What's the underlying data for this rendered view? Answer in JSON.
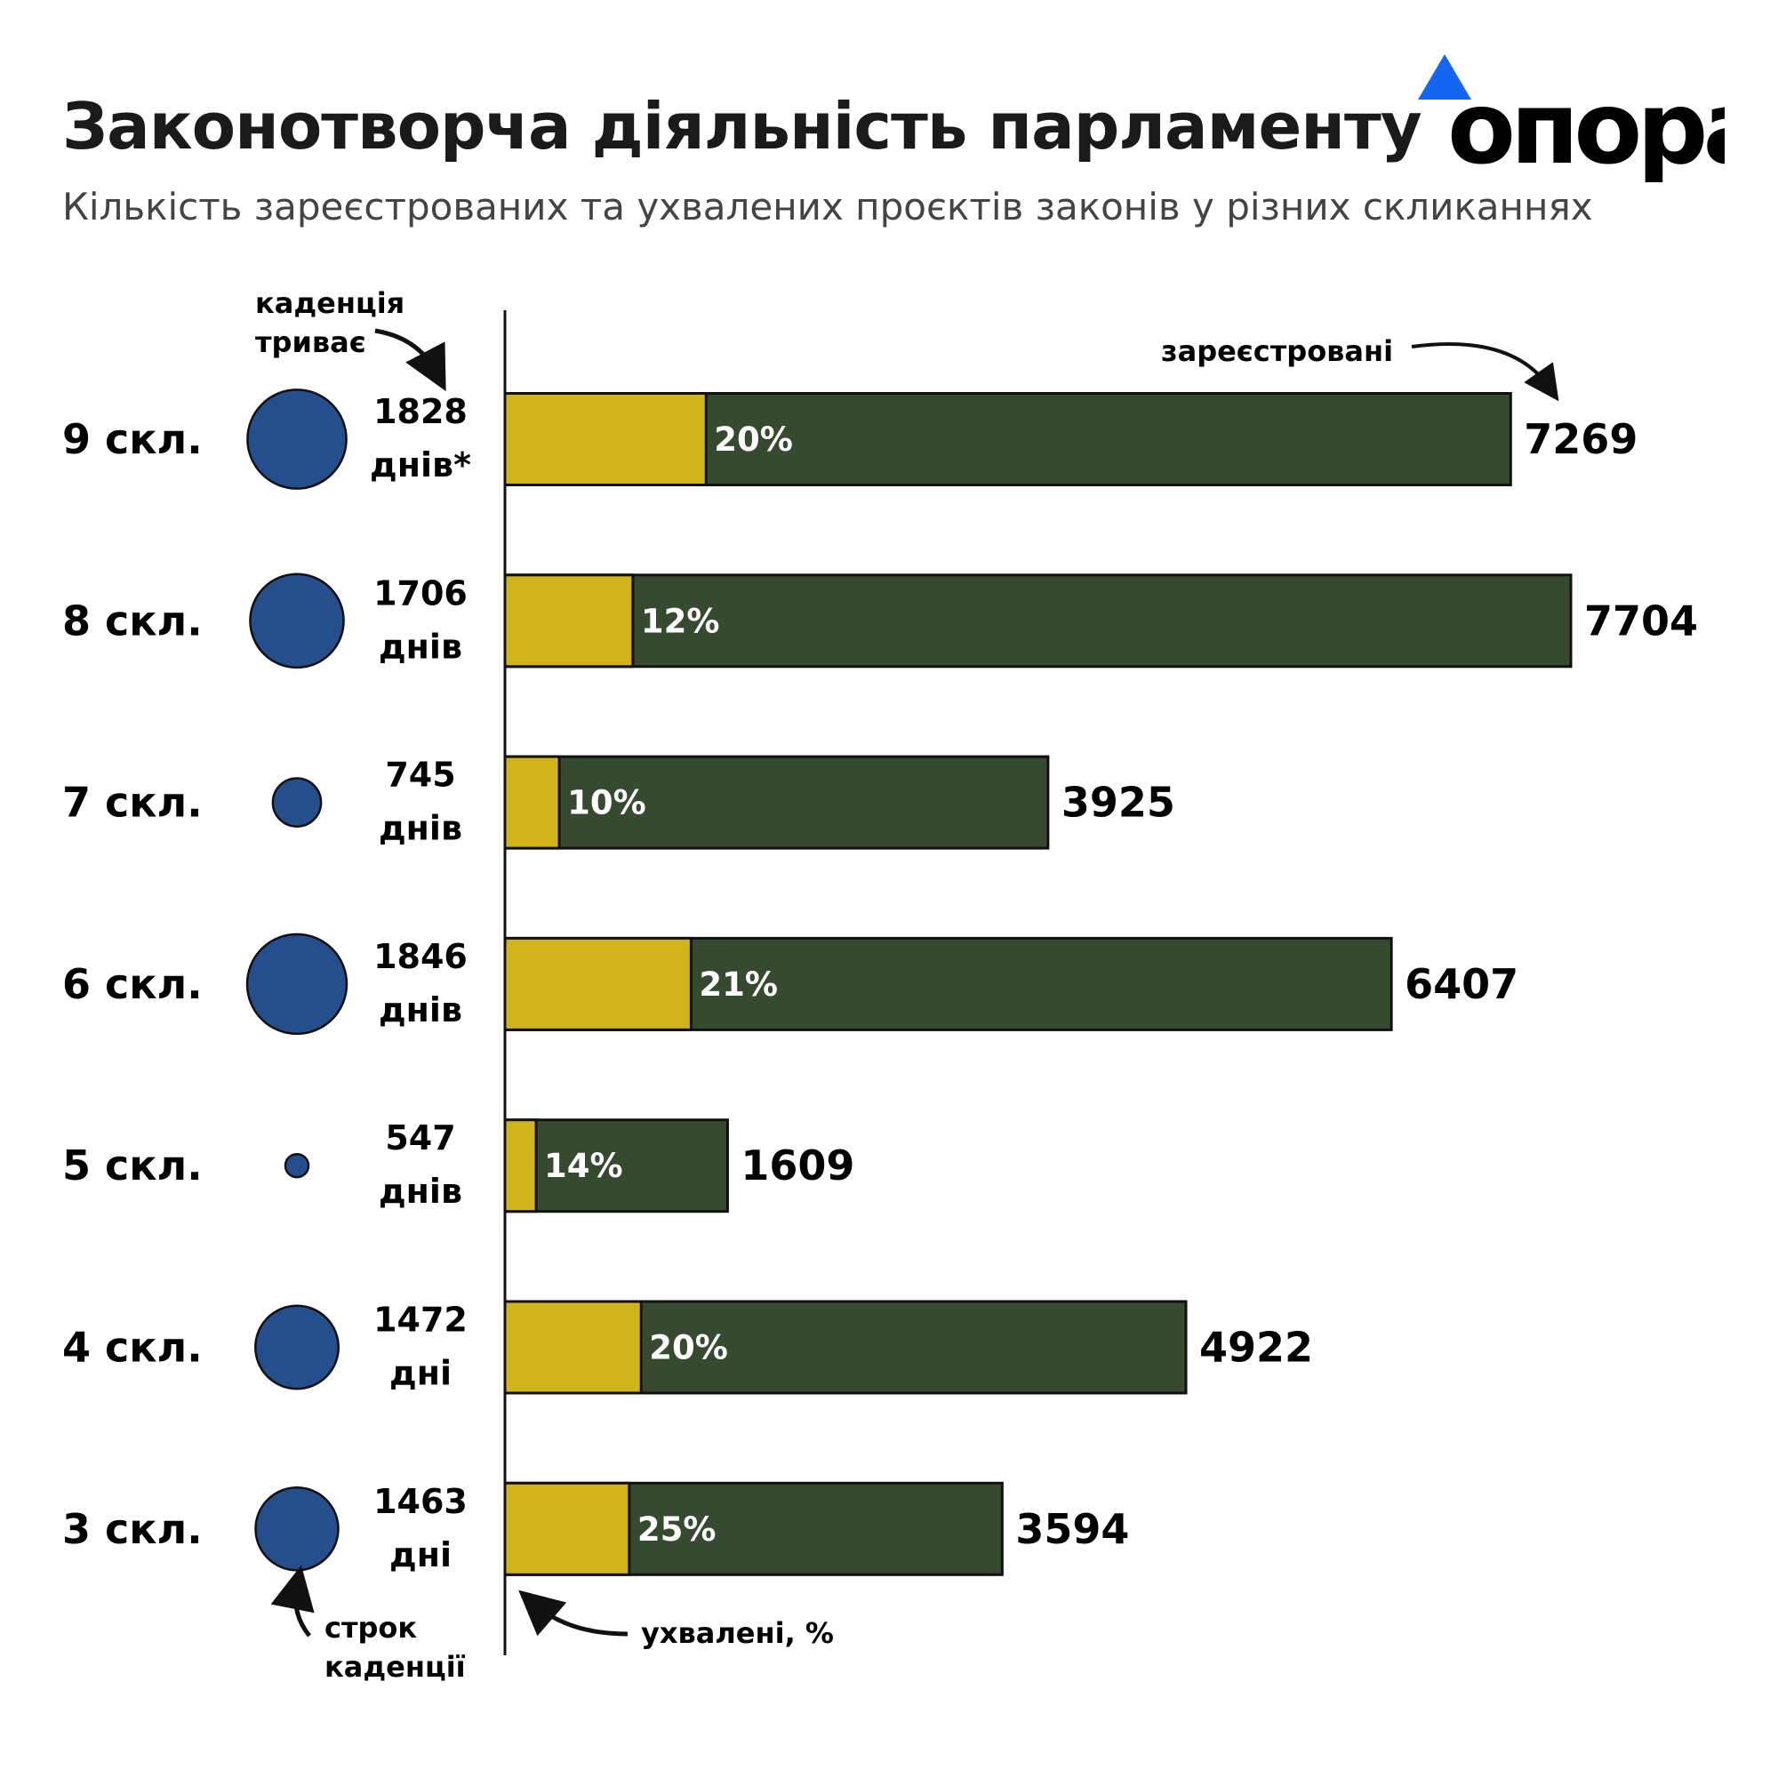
{
  "header": {
    "title": "Законотворча діяльність парламенту",
    "subtitle": "Кількість зареєстрованих та ухвалених проєктів законів у різних скликаннях",
    "logo_text": "опора"
  },
  "colors": {
    "approved": "#d1b41c",
    "registered": "#354a2f",
    "term_circle": "#254e8c",
    "logo_triangle": "#1466f0"
  },
  "annotations": {
    "ongoing_line1": "каденція",
    "ongoing_line2": "триває",
    "registered": "зареєстровані",
    "term_line1": "строк",
    "term_line2": "каденції",
    "approved": "ухвалені, %"
  },
  "chart_data": {
    "type": "bar",
    "orientation": "horizontal",
    "title": "Законотворча діяльність парламенту",
    "subtitle": "Кількість зареєстрованих та ухвалених проєктів законів у різних скликаннях",
    "categories": [
      "9  скл.",
      "8  скл.",
      "7  скл.",
      "6  скл.",
      "5  скл.",
      "4  скл.",
      "3  скл."
    ],
    "series": [
      {
        "name": "зареєстровані",
        "values": [
          7269,
          7704,
          3925,
          6407,
          1609,
          4922,
          3594
        ]
      },
      {
        "name": "ухвалені, %",
        "values": [
          20,
          12,
          10,
          21,
          14,
          20,
          25
        ]
      }
    ],
    "term_days": [
      1828,
      1706,
      745,
      1846,
      547,
      1472,
      1463
    ],
    "term_days_labels": [
      "днів*",
      "днів",
      "днів",
      "днів",
      "днів",
      "дні",
      "дні"
    ],
    "percent_labels": [
      "20%",
      "12%",
      "10%",
      "21%",
      "14%",
      "20%",
      "25%"
    ],
    "xlim": [
      0,
      7704
    ],
    "grid": false
  }
}
